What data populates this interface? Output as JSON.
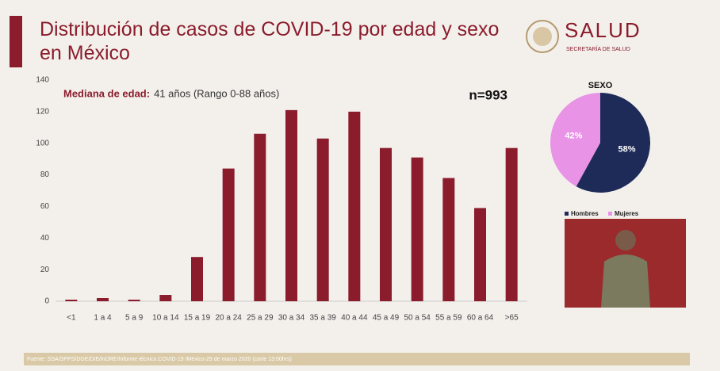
{
  "header": {
    "brand": "SALUD",
    "subtitle": "SECRETARÍA DE SALUD"
  },
  "footer": {
    "source": "Fuente: SSA/SPPS/DGE/DIE/InDRE/Informe técnico.COVID-19 /México-29 de marzo 2020 (corte 13:00hrs)"
  },
  "chart_data": [
    {
      "type": "bar",
      "title": "Distribución de casos de COVID-19 por edad y sexo en México",
      "annotations": {
        "median_label": "Mediana de edad:",
        "median_text": "41 años (Rango 0-88 años)",
        "n": "n=993"
      },
      "categories": [
        "<1",
        "1 a 4",
        "5 a 9",
        "10 a 14",
        "15 a 19",
        "20 a 24",
        "25 a 29",
        "30 a 34",
        "35 a 39",
        "40 a 44",
        "45 a 49",
        "50 a 54",
        "55 a 59",
        "60 a 64",
        ">65"
      ],
      "values": [
        1,
        2,
        1,
        4,
        28,
        84,
        106,
        121,
        103,
        120,
        97,
        91,
        78,
        59,
        97
      ],
      "color": "#8b1c2c",
      "ylim": [
        0,
        140
      ],
      "yticks": [
        0,
        20,
        40,
        60,
        80,
        100,
        120,
        140
      ],
      "grid": false
    },
    {
      "type": "pie",
      "title": "SEXO",
      "categories": [
        "Hombres",
        "Mujeres"
      ],
      "values": [
        58,
        42
      ],
      "value_labels": [
        "58%",
        "42%"
      ],
      "colors": [
        "#1e2b58",
        "#e993e6"
      ]
    }
  ]
}
